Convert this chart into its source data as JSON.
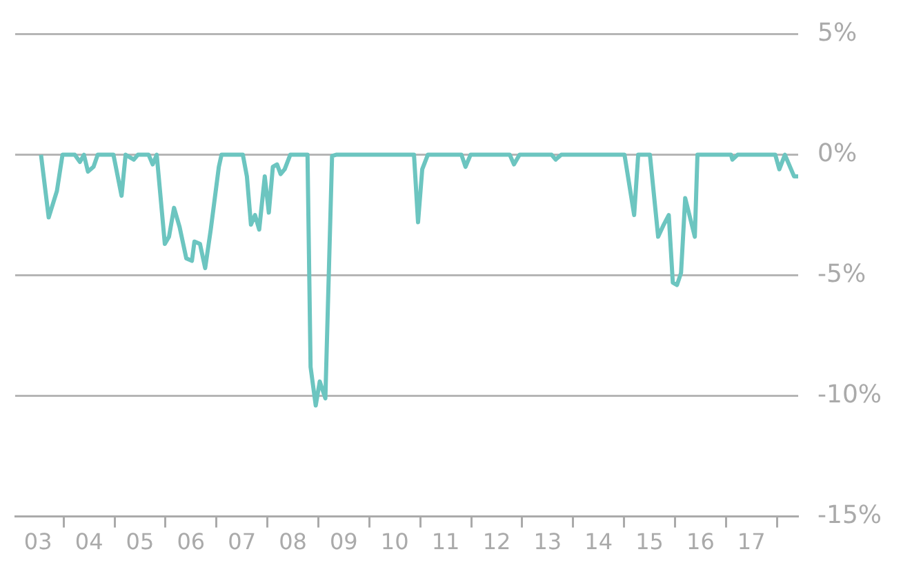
{
  "chart_data": {
    "type": "line",
    "xlim": [
      "2003-01-19",
      "2018-06-02"
    ],
    "ylim": [
      -15,
      5
    ],
    "xticks": [
      {
        "value": "2003-07-02",
        "label": "03"
      },
      {
        "value": "2004-01-01",
        "label": null
      },
      {
        "value": "2004-07-02",
        "label": "04"
      },
      {
        "value": "2005-01-01",
        "label": null
      },
      {
        "value": "2005-07-02",
        "label": "05"
      },
      {
        "value": "2006-01-01",
        "label": null
      },
      {
        "value": "2006-07-02",
        "label": "06"
      },
      {
        "value": "2007-01-01",
        "label": null
      },
      {
        "value": "2007-07-02",
        "label": "07"
      },
      {
        "value": "2008-01-01",
        "label": null
      },
      {
        "value": "2008-07-02",
        "label": "08"
      },
      {
        "value": "2009-01-01",
        "label": null
      },
      {
        "value": "2009-07-02",
        "label": "09"
      },
      {
        "value": "2010-01-01",
        "label": null
      },
      {
        "value": "2010-07-02",
        "label": "10"
      },
      {
        "value": "2011-01-01",
        "label": null
      },
      {
        "value": "2011-07-02",
        "label": "11"
      },
      {
        "value": "2012-01-01",
        "label": null
      },
      {
        "value": "2012-07-02",
        "label": "12"
      },
      {
        "value": "2013-01-01",
        "label": null
      },
      {
        "value": "2013-07-02",
        "label": "13"
      },
      {
        "value": "2014-01-01",
        "label": null
      },
      {
        "value": "2014-07-02",
        "label": "14"
      },
      {
        "value": "2015-01-01",
        "label": null
      },
      {
        "value": "2015-07-02",
        "label": "15"
      },
      {
        "value": "2016-01-01",
        "label": null
      },
      {
        "value": "2016-07-02",
        "label": "16"
      },
      {
        "value": "2017-01-01",
        "label": null
      },
      {
        "value": "2017-07-02",
        "label": "17"
      },
      {
        "value": "2018-01-01",
        "label": null
      }
    ],
    "yticks": [
      {
        "value": 5,
        "label": "5%"
      },
      {
        "value": 0,
        "label": "0%"
      },
      {
        "value": -5,
        "label": "-5%"
      },
      {
        "value": -10,
        "label": "-10%"
      },
      {
        "value": -15,
        "label": "-15%"
      }
    ],
    "grid": "y",
    "legend": false,
    "marker": "none",
    "line_style": "solid",
    "x": [
      "2003-07-23",
      "2003-09-16",
      "2003-11-14",
      "2003-12-24",
      "2004-03-21",
      "2004-04-27",
      "2004-05-26",
      "2004-06-24",
      "2004-08-03",
      "2004-09-02",
      "2004-12-24",
      "2005-02-20",
      "2005-03-21",
      "2005-05-19",
      "2005-06-17",
      "2005-09-02",
      "2005-10-01",
      "2005-10-30",
      "2005-12-27",
      "2006-01-26",
      "2006-03-03",
      "2006-04-12",
      "2006-05-30",
      "2006-07-09",
      "2006-07-27",
      "2006-09-05",
      "2006-10-12",
      "2006-11-21",
      "2006-12-20",
      "2007-01-18",
      "2007-02-06",
      "2007-07-09",
      "2007-08-07",
      "2007-09-05",
      "2007-10-04",
      "2007-11-03",
      "2007-12-13",
      "2008-01-11",
      "2008-02-09",
      "2008-03-10",
      "2008-04-05",
      "2008-05-04",
      "2008-06-13",
      "2008-10-15",
      "2008-11-06",
      "2008-12-13",
      "2009-01-11",
      "2009-02-20",
      "2009-04-09",
      "2009-05-08",
      "2010-11-17",
      "2010-12-16",
      "2011-01-15",
      "2011-02-24",
      "2011-10-23",
      "2011-11-21",
      "2011-12-27",
      "2012-10-04",
      "2012-11-03",
      "2012-12-13",
      "2013-07-31",
      "2013-08-29",
      "2013-10-08",
      "2015-01-04",
      "2015-03-14",
      "2015-04-12",
      "2015-07-05",
      "2015-09-02",
      "2015-10-12",
      "2015-11-17",
      "2015-12-16",
      "2016-01-15",
      "2016-02-13",
      "2016-03-14",
      "2016-05-22",
      "2016-06-10",
      "2017-02-06",
      "2017-02-16",
      "2017-03-25",
      "2017-12-20",
      "2018-01-18",
      "2018-02-27",
      "2018-05-04",
      "2018-06-02"
    ],
    "series": [
      {
        "color": "#6cc5c0",
        "values": [
          0,
          -2.6,
          -1.5,
          0,
          0,
          -0.3,
          0,
          -0.7,
          -0.5,
          0,
          0,
          -1.7,
          0,
          -0.2,
          0,
          0,
          -0.4,
          0,
          -3.7,
          -3.4,
          -2.2,
          -3.0,
          -4.3,
          -4.4,
          -3.6,
          -3.7,
          -4.7,
          -3.1,
          -1.8,
          -0.5,
          0,
          0,
          -0.9,
          -2.9,
          -2.5,
          -3.1,
          -0.9,
          -2.4,
          -0.5,
          -0.4,
          -0.8,
          -0.6,
          0,
          0,
          -8.8,
          -10.4,
          -9.4,
          -10.1,
          -0.05,
          0,
          0,
          -2.8,
          -0.6,
          0,
          0,
          -0.5,
          0,
          0,
          -0.4,
          0,
          0,
          -0.2,
          0,
          0,
          -2.5,
          0,
          0,
          -3.4,
          -2.9,
          -2.5,
          -5.3,
          -5.4,
          -4.9,
          -1.8,
          -3.4,
          0,
          0,
          -0.2,
          0,
          0,
          -0.6,
          0,
          -0.9,
          -0.9
        ]
      }
    ]
  }
}
